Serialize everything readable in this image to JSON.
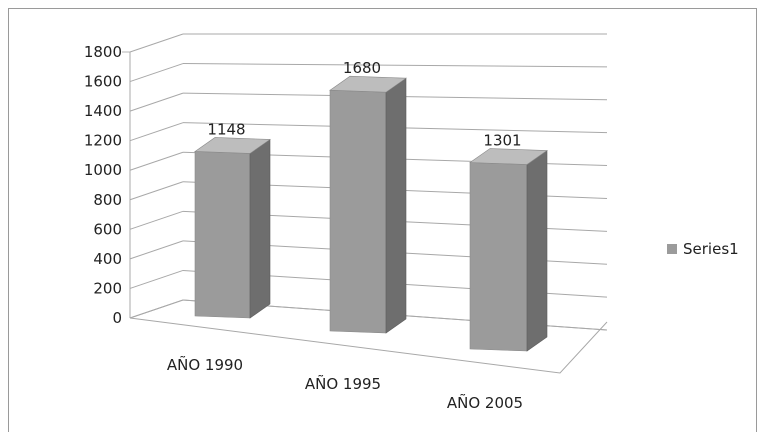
{
  "chart_data": {
    "type": "bar",
    "categories": [
      "AÑO 1990",
      "AÑO 1995",
      "AÑO 2005"
    ],
    "series": [
      {
        "name": "Series1",
        "values": [
          1148,
          1680,
          1301
        ]
      }
    ],
    "title": "",
    "xlabel": "",
    "ylabel": "",
    "ylim": [
      0,
      1800
    ],
    "yticks": [
      0,
      200,
      400,
      600,
      800,
      1000,
      1200,
      1400,
      1600,
      1800
    ],
    "grid": true,
    "legend_position": "right",
    "data_labels": true,
    "colors": {
      "bar_front": "#9b9b9b",
      "bar_side": "#6e6e6e",
      "bar_top": "#bdbdbd",
      "gridline": "#a8a8a8",
      "frame": "#9a9a9a"
    },
    "style": "3d-column"
  }
}
